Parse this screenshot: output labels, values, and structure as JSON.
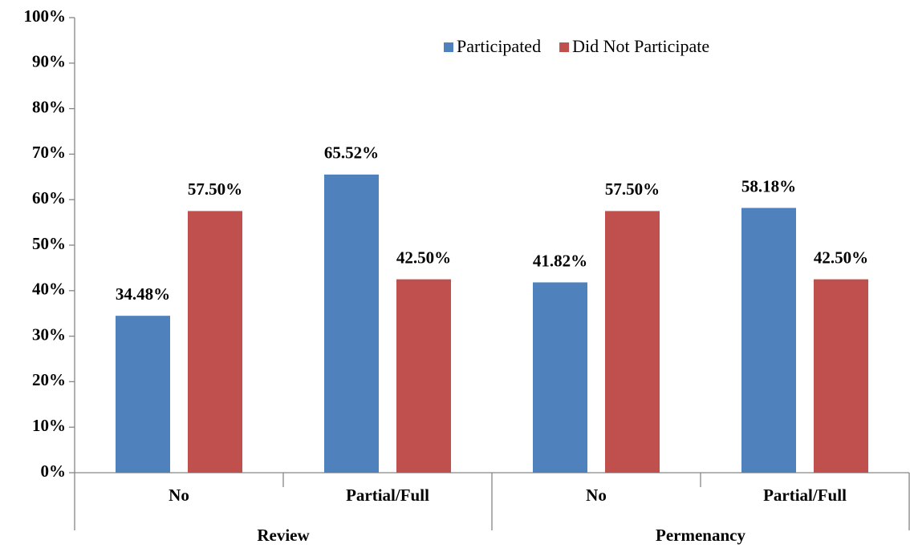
{
  "chart_data": {
    "type": "bar",
    "categories": [
      "No",
      "Partial/Full",
      "No",
      "Partial/Full"
    ],
    "group_labels": [
      "Review",
      "Permenancy"
    ],
    "series": [
      {
        "name": "Participated",
        "color": "#4f81bd",
        "values": [
          34.48,
          65.52,
          41.82,
          58.18
        ],
        "value_labels": [
          "34.48%",
          "65.52%",
          "41.82%",
          "58.18%"
        ]
      },
      {
        "name": "Did Not Participate",
        "color": "#c0504d",
        "values": [
          57.5,
          42.5,
          57.5,
          42.5
        ],
        "value_labels": [
          "57.50%",
          "42.50%",
          "57.50%",
          "42.50%"
        ]
      }
    ],
    "ylim": [
      0,
      100
    ],
    "yticks": [
      {
        "value": 0,
        "label": "0%"
      },
      {
        "value": 10,
        "label": "10%"
      },
      {
        "value": 20,
        "label": "20%"
      },
      {
        "value": 30,
        "label": "30%"
      },
      {
        "value": 40,
        "label": "40%"
      },
      {
        "value": 50,
        "label": "50%"
      },
      {
        "value": 60,
        "label": "60%"
      },
      {
        "value": 70,
        "label": "70%"
      },
      {
        "value": 80,
        "label": "80%"
      },
      {
        "value": 90,
        "label": "90%"
      },
      {
        "value": 100,
        "label": "100%"
      }
    ],
    "grid": false,
    "legend": "top-right"
  }
}
